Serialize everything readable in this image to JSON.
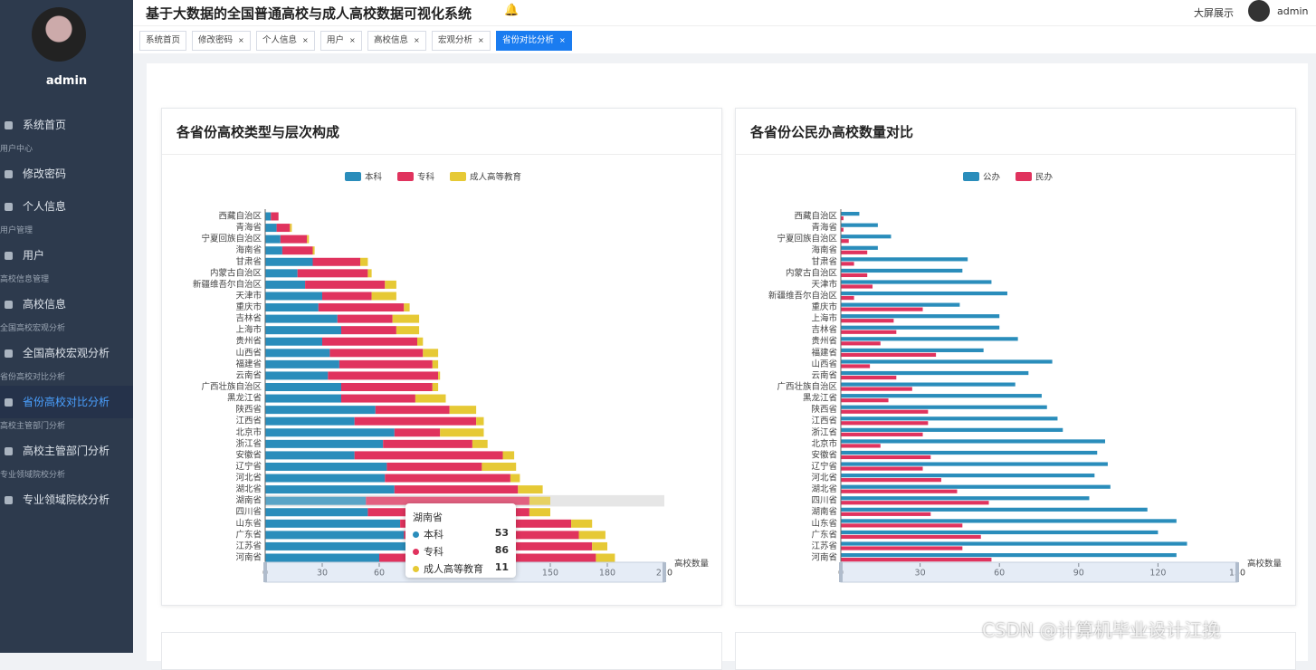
{
  "header": {
    "title": "基于大数据的全国普通高校与成人高校数据可视化系统",
    "screen": "大屏展示",
    "user": "admin"
  },
  "sidebar": {
    "user": "admin",
    "menu": [
      {
        "label": "系统首页"
      },
      {
        "group": "用户中心",
        "label": "修改密码"
      },
      {
        "label": "个人信息"
      },
      {
        "group": "用户管理",
        "label": "用户"
      },
      {
        "group": "高校信息管理",
        "label": "高校信息"
      },
      {
        "group": "全国高校宏观分析",
        "label": "全国高校宏观分析"
      },
      {
        "group": "省份高校对比分析",
        "label": "省份高校对比分析"
      },
      {
        "group": "高校主管部门分析",
        "label": "高校主管部门分析"
      },
      {
        "group": "专业领域院校分析",
        "label": "专业领域院校分析"
      }
    ]
  },
  "tabs": [
    "系统首页",
    "修改密码",
    "个人信息",
    "用户",
    "高校信息",
    "宏观分析",
    "省份对比分析"
  ],
  "chart_data": [
    {
      "type": "bar",
      "stacked": true,
      "title": "各省份高校类型与层次构成",
      "x_label": "高校数量",
      "xlim": [
        0,
        210
      ],
      "xticks": [
        0,
        30,
        60,
        90,
        120,
        150,
        180,
        210
      ],
      "categories": [
        "西藏自治区",
        "青海省",
        "宁夏回族自治区",
        "海南省",
        "甘肃省",
        "内蒙古自治区",
        "新疆维吾尔自治区",
        "天津市",
        "重庆市",
        "吉林省",
        "上海市",
        "贵州省",
        "山西省",
        "福建省",
        "云南省",
        "广西壮族自治区",
        "黑龙江省",
        "陕西省",
        "江西省",
        "北京市",
        "浙江省",
        "安徽省",
        "辽宁省",
        "河北省",
        "湖北省",
        "湖南省",
        "四川省",
        "山东省",
        "广东省",
        "江苏省",
        "河南省"
      ],
      "series": [
        {
          "name": "本科",
          "color": "#2a8dbb",
          "values": [
            3,
            6,
            8,
            9,
            25,
            17,
            21,
            30,
            28,
            38,
            40,
            30,
            34,
            39,
            33,
            40,
            40,
            58,
            47,
            68,
            62,
            47,
            64,
            63,
            68,
            53,
            54,
            71,
            73,
            74,
            60
          ]
        },
        {
          "name": "专科",
          "color": "#e0335e",
          "values": [
            4,
            7,
            14,
            16,
            25,
            37,
            42,
            26,
            45,
            29,
            29,
            50,
            49,
            49,
            58,
            48,
            39,
            39,
            64,
            24,
            47,
            78,
            50,
            66,
            65,
            86,
            85,
            90,
            92,
            98,
            114
          ]
        },
        {
          "name": "成人高等教育",
          "color": "#e6c935",
          "values": [
            0,
            1,
            1,
            1,
            4,
            2,
            6,
            13,
            3,
            14,
            12,
            3,
            8,
            3,
            1,
            3,
            16,
            14,
            4,
            23,
            8,
            6,
            18,
            5,
            13,
            11,
            11,
            11,
            14,
            8,
            10
          ]
        }
      ]
    },
    {
      "type": "bar",
      "stacked": false,
      "title": "各省份公民办高校数量对比",
      "x_label": "高校数量",
      "xlim": [
        0,
        150
      ],
      "xticks": [
        0,
        30,
        60,
        90,
        120,
        150
      ],
      "categories": [
        "西藏自治区",
        "青海省",
        "宁夏回族自治区",
        "海南省",
        "甘肃省",
        "内蒙古自治区",
        "天津市",
        "新疆维吾尔自治区",
        "重庆市",
        "上海市",
        "吉林省",
        "贵州省",
        "福建省",
        "山西省",
        "云南省",
        "广西壮族自治区",
        "黑龙江省",
        "陕西省",
        "江西省",
        "浙江省",
        "北京市",
        "安徽省",
        "辽宁省",
        "河北省",
        "湖北省",
        "四川省",
        "湖南省",
        "山东省",
        "广东省",
        "江苏省",
        "河南省"
      ],
      "series": [
        {
          "name": "公办",
          "color": "#2a8dbb",
          "values": [
            7,
            14,
            19,
            14,
            48,
            46,
            57,
            63,
            45,
            60,
            60,
            67,
            54,
            80,
            71,
            66,
            76,
            78,
            82,
            84,
            100,
            97,
            101,
            96,
            102,
            94,
            116,
            127,
            120,
            131,
            127
          ]
        },
        {
          "name": "民办",
          "color": "#e0335e",
          "values": [
            1,
            1,
            3,
            10,
            5,
            10,
            12,
            5,
            31,
            20,
            21,
            15,
            36,
            11,
            21,
            27,
            18,
            33,
            33,
            31,
            15,
            34,
            31,
            38,
            44,
            56,
            34,
            46,
            53,
            46,
            57
          ]
        }
      ]
    }
  ],
  "watermark": "CSDN @计算机毕业设计江挽"
}
